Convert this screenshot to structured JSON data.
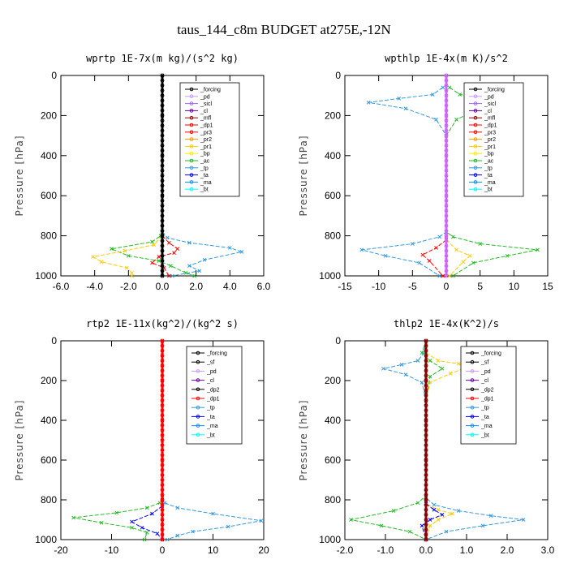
{
  "figure": {
    "title": "taus_144_c8m  BUDGET at275E,-12N"
  },
  "colors": {
    "forcing": "#000000",
    "pd": "#cc99ff",
    "sicl": "#9966ff",
    "cl": "#6600aa",
    "mfl": "#8b0000",
    "dp1": "#ff0000",
    "pr3": "#ff0000",
    "pr2": "#ff9900",
    "pr1": "#ffcc00",
    "bp": "#ffee00",
    "ac": "#22bb22",
    "tp": "#3399dd",
    "ta": "#0000ff",
    "ma": "#1188ff",
    "bt": "#00ffff"
  },
  "chart_data": [
    {
      "type": "line",
      "title": "wprtp  1E-7x(m kg)/(s^2 kg)",
      "xlabel": "",
      "ylabel": "Pressure [hPa]",
      "xlim": [
        -6,
        6
      ],
      "ylim": [
        1000,
        0
      ],
      "xticks": [
        "-6.0",
        "-4.0",
        "-2.0",
        "0.0",
        "2.0",
        "4.0",
        "6.0"
      ],
      "xtick_values": [
        -6,
        -4,
        -2,
        0,
        2,
        4,
        6
      ],
      "yticks": [
        "0",
        "200",
        "400",
        "600",
        "800",
        "1000"
      ],
      "ytick_values": [
        0,
        200,
        400,
        600,
        800,
        1000
      ],
      "legend_position": "top-right",
      "legend": [
        "_forcing",
        "_pd",
        "_sicl",
        "_cl",
        "_mfl",
        "_dp1",
        "_pr3",
        "_pr2",
        "_pr1",
        "_bp",
        "_ac",
        "_tp",
        "_ta",
        "_ma",
        "_bt"
      ],
      "series": [
        {
          "name": "_ac",
          "color": "#22bb22",
          "points": [
            [
              0,
              780
            ],
            [
              -0.1,
              800
            ],
            [
              -0.6,
              830
            ],
            [
              -3.0,
              865
            ],
            [
              -2.0,
              900
            ],
            [
              -0.2,
              925
            ],
            [
              0.5,
              950
            ],
            [
              1.4,
              985
            ],
            [
              1.9,
              1000
            ]
          ]
        },
        {
          "name": "_tp",
          "color": "#3399dd",
          "points": [
            [
              0,
              780
            ],
            [
              0.3,
              810
            ],
            [
              1.6,
              835
            ],
            [
              4.0,
              860
            ],
            [
              4.7,
              880
            ],
            [
              2.5,
              920
            ],
            [
              1.6,
              950
            ],
            [
              2.2,
              975
            ],
            [
              0.6,
              1000
            ]
          ]
        },
        {
          "name": "_pr1",
          "color": "#ffcc00",
          "points": [
            [
              0,
              800
            ],
            [
              -0.5,
              845
            ],
            [
              -2.2,
              875
            ],
            [
              -4.1,
              905
            ],
            [
              -3.6,
              930
            ],
            [
              -2.1,
              960
            ],
            [
              -1.8,
              985
            ],
            [
              -1.8,
              1000
            ]
          ]
        },
        {
          "name": "_dp1",
          "color": "#ff0000",
          "points": [
            [
              0,
              800
            ],
            [
              0.4,
              835
            ],
            [
              0.9,
              865
            ],
            [
              0.7,
              885
            ],
            [
              -0.2,
              905
            ],
            [
              -0.6,
              935
            ],
            [
              0.1,
              960
            ],
            [
              0.4,
              1000
            ]
          ]
        },
        {
          "name": "_forcing",
          "color": "#000000",
          "points": [
            [
              0,
              0
            ],
            [
              0,
              200
            ],
            [
              0,
              400
            ],
            [
              0,
              600
            ],
            [
              0,
              800
            ],
            [
              0,
              1000
            ]
          ]
        }
      ]
    },
    {
      "type": "line",
      "title": "wpthlp  1E-4x(m K)/s^2",
      "xlabel": "",
      "ylabel": "Pressure [hPa]",
      "xlim": [
        -15,
        15
      ],
      "ylim": [
        1000,
        0
      ],
      "xticks": [
        "-15",
        "-10",
        "-5",
        "0",
        "5",
        "10",
        "15"
      ],
      "xtick_values": [
        -15,
        -10,
        -5,
        0,
        5,
        10,
        15
      ],
      "yticks": [
        "0",
        "200",
        "400",
        "600",
        "800",
        "1000"
      ],
      "ytick_values": [
        0,
        200,
        400,
        600,
        800,
        1000
      ],
      "legend_position": "top-right",
      "legend": [
        "_forcing",
        "_pd",
        "_sicl",
        "_cl",
        "_mfl",
        "_dp1",
        "_pr3",
        "_pr2",
        "_pr1",
        "_bp",
        "_ac",
        "_tp",
        "_ta",
        "_ma",
        "_bt"
      ],
      "series": [
        {
          "name": "_tp",
          "color": "#3399dd",
          "points": [
            [
              -0.5,
              60
            ],
            [
              -2,
              95
            ],
            [
              -7,
              115
            ],
            [
              -11.5,
              135
            ],
            [
              -6,
              165
            ],
            [
              -1.5,
              220
            ],
            [
              0,
              300
            ],
            [
              0,
              780
            ],
            [
              -1,
              805
            ],
            [
              -5,
              840
            ],
            [
              -12.5,
              870
            ],
            [
              -9,
              900
            ],
            [
              -4,
              935
            ],
            [
              -1,
              1000
            ]
          ]
        },
        {
          "name": "_ac",
          "color": "#22bb22",
          "points": [
            [
              0.5,
              60
            ],
            [
              2,
              95
            ],
            [
              6,
              110
            ],
            [
              9.5,
              125
            ],
            [
              5,
              165
            ],
            [
              1.5,
              220
            ],
            [
              0,
              300
            ],
            [
              0,
              780
            ],
            [
              1,
              805
            ],
            [
              5,
              840
            ],
            [
              13.5,
              870
            ],
            [
              9,
              900
            ],
            [
              4,
              935
            ],
            [
              1,
              1000
            ]
          ]
        },
        {
          "name": "_pr1",
          "color": "#ffcc00",
          "points": [
            [
              0,
              820
            ],
            [
              1.5,
              870
            ],
            [
              3.5,
              900
            ],
            [
              2.5,
              930
            ],
            [
              0.5,
              1000
            ]
          ]
        },
        {
          "name": "_dp1",
          "color": "#ff0000",
          "points": [
            [
              0,
              820
            ],
            [
              -1.5,
              860
            ],
            [
              -3.5,
              895
            ],
            [
              -2.5,
              925
            ],
            [
              -0.5,
              1000
            ]
          ]
        },
        {
          "name": "_forcing",
          "color": "#cc66ff",
          "points": [
            [
              0,
              0
            ],
            [
              0,
              200
            ],
            [
              0,
              400
            ],
            [
              0,
              600
            ],
            [
              0,
              800
            ],
            [
              0,
              1000
            ]
          ]
        }
      ]
    },
    {
      "type": "line",
      "title": "rtp2  1E-11x(kg^2)/(kg^2 s)",
      "xlabel": "",
      "ylabel": "Pressure [hPa]",
      "xlim": [
        -20,
        20
      ],
      "ylim": [
        1000,
        0
      ],
      "xticks": [
        "-20",
        "-10",
        "0",
        "10",
        "20"
      ],
      "xtick_values": [
        -20,
        -10,
        0,
        10,
        20
      ],
      "yticks": [
        "0",
        "200",
        "400",
        "600",
        "800",
        "1000"
      ],
      "ytick_values": [
        0,
        200,
        400,
        600,
        800,
        1000
      ],
      "legend_position": "top-right",
      "legend": [
        "_forcing",
        "_sf",
        "_pd",
        "_cl",
        "_dp2",
        "_dp1",
        "_tp",
        "_ta",
        "_ma",
        "_bt"
      ],
      "series": [
        {
          "name": "_dp1",
          "color": "#22bb22",
          "points": [
            [
              0,
              790
            ],
            [
              -0.5,
              815
            ],
            [
              -3,
              840
            ],
            [
              -9,
              865
            ],
            [
              -17.5,
              890
            ],
            [
              -12,
              915
            ],
            [
              -6,
              940
            ],
            [
              -3,
              965
            ],
            [
              -3.5,
              1000
            ]
          ]
        },
        {
          "name": "_tp",
          "color": "#3399dd",
          "points": [
            [
              0,
              790
            ],
            [
              0.5,
              815
            ],
            [
              3,
              840
            ],
            [
              10,
              870
            ],
            [
              19.5,
              905
            ],
            [
              13,
              935
            ],
            [
              6,
              960
            ],
            [
              3,
              980
            ],
            [
              1,
              1000
            ]
          ]
        },
        {
          "name": "_ta",
          "color": "#0000ff",
          "points": [
            [
              0,
              830
            ],
            [
              -2,
              870
            ],
            [
              -6,
              910
            ],
            [
              -4,
              940
            ],
            [
              -1,
              970
            ],
            [
              0,
              1000
            ]
          ]
        },
        {
          "name": "_forcing",
          "color": "#ff0000",
          "points": [
            [
              0,
              0
            ],
            [
              0,
              200
            ],
            [
              0,
              400
            ],
            [
              0,
              600
            ],
            [
              0,
              800
            ],
            [
              0,
              1000
            ]
          ]
        }
      ]
    },
    {
      "type": "line",
      "title": "thlp2  1E-4x(K^2)/s",
      "xlabel": "",
      "ylabel": "Pressure [hPa]",
      "xlim": [
        -2,
        3
      ],
      "ylim": [
        1000,
        0
      ],
      "xticks": [
        "-2.0",
        "-1.0",
        "0.0",
        "1.0",
        "2.0",
        "3.0"
      ],
      "xtick_values": [
        -2,
        -1,
        0,
        1,
        2,
        3
      ],
      "yticks": [
        "0",
        "200",
        "400",
        "600",
        "800",
        "1000"
      ],
      "ytick_values": [
        0,
        200,
        400,
        600,
        800,
        1000
      ],
      "legend_position": "top-right",
      "legend": [
        "_forcing",
        "_sf",
        "_pd",
        "_cl",
        "_dp2",
        "_dp1",
        "_tp",
        "_ta",
        "_ma",
        "_bt"
      ],
      "series": [
        {
          "name": "_tp",
          "color": "#3399dd",
          "points": [
            [
              0,
              0
            ],
            [
              -0.05,
              60
            ],
            [
              -0.2,
              100
            ],
            [
              -0.6,
              120
            ],
            [
              -1.05,
              140
            ],
            [
              -0.5,
              170
            ],
            [
              -0.1,
              210
            ],
            [
              0,
              300
            ],
            [
              0,
              790
            ],
            [
              0.2,
              825
            ],
            [
              0.8,
              855
            ],
            [
              1.6,
              880
            ],
            [
              2.4,
              900
            ],
            [
              1.4,
              930
            ],
            [
              0.5,
              960
            ],
            [
              0,
              1000
            ]
          ]
        },
        {
          "name": "_pd",
          "color": "#ffcc00",
          "points": [
            [
              0,
              60
            ],
            [
              0.3,
              100
            ],
            [
              0.8,
              115
            ],
            [
              1.05,
              130
            ],
            [
              0.6,
              165
            ],
            [
              0.1,
              210
            ],
            [
              0,
              300
            ],
            [
              0,
              820
            ],
            [
              0.3,
              850
            ],
            [
              0.65,
              870
            ],
            [
              0.3,
              900
            ],
            [
              0.1,
              930
            ],
            [
              0,
              1000
            ]
          ]
        },
        {
          "name": "_dp1",
          "color": "#22bb22",
          "points": [
            [
              0,
              0
            ],
            [
              -0.1,
              60
            ],
            [
              0.1,
              100
            ],
            [
              0.4,
              140
            ],
            [
              0.1,
              180
            ],
            [
              0,
              300
            ],
            [
              0,
              780
            ],
            [
              -0.2,
              815
            ],
            [
              -0.8,
              855
            ],
            [
              -1.85,
              900
            ],
            [
              -1.1,
              930
            ],
            [
              -0.4,
              960
            ],
            [
              0,
              1000
            ]
          ]
        },
        {
          "name": "_ta",
          "color": "#0000ff",
          "points": [
            [
              0,
              820
            ],
            [
              0.2,
              850
            ],
            [
              0.4,
              875
            ],
            [
              0.1,
              900
            ],
            [
              -0.1,
              930
            ],
            [
              0,
              1000
            ]
          ]
        },
        {
          "name": "_forcing",
          "color": "#8b0000",
          "points": [
            [
              0,
              0
            ],
            [
              0,
              200
            ],
            [
              0,
              400
            ],
            [
              0,
              600
            ],
            [
              0,
              800
            ],
            [
              0,
              1000
            ]
          ]
        }
      ]
    }
  ]
}
